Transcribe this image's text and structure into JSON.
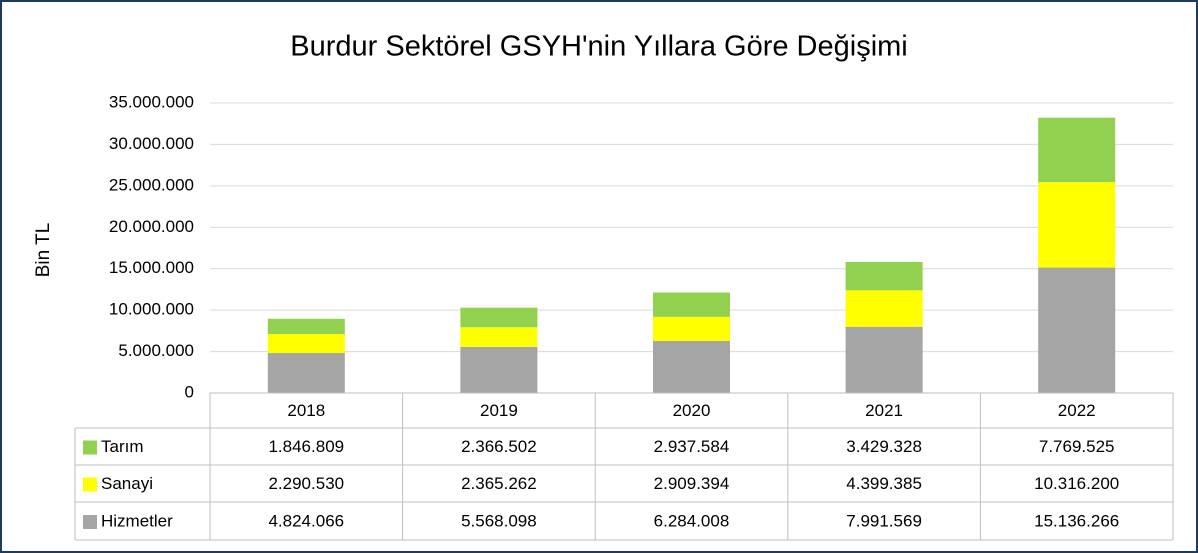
{
  "chart_data": {
    "type": "stacked_bar",
    "title": "Burdur Sektörel GSYH'nin Yıllara Göre Değişimi",
    "y_label": "Bin TL",
    "categories": [
      "2018",
      "2019",
      "2020",
      "2021",
      "2022"
    ],
    "series": [
      {
        "name": "Tarım",
        "color": "#92d050",
        "values": [
          1846809,
          2366502,
          2937584,
          3429328,
          7769525
        ],
        "value_labels": [
          "1.846.809",
          "2.366.502",
          "2.937.584",
          "3.429.328",
          "7.769.525"
        ]
      },
      {
        "name": "Sanayi",
        "color": "#ffff00",
        "values": [
          2290530,
          2365262,
          2909394,
          4399385,
          10316200
        ],
        "value_labels": [
          "2.290.530",
          "2.365.262",
          "2.909.394",
          "4.399.385",
          "10.316.200"
        ]
      },
      {
        "name": "Hizmetler",
        "color": "#a5a5a5",
        "values": [
          4824066,
          5568098,
          6284008,
          7991569,
          15136266
        ],
        "value_labels": [
          "4.824.066",
          "5.568.098",
          "6.284.008",
          "7.991.569",
          "15.136.266"
        ]
      }
    ],
    "ylim": [
      0,
      35000000
    ],
    "yticks": [
      0,
      {
        "value": 5000000,
        "label": "5.000.000"
      },
      {
        "value": 10000000,
        "label": "10.000.000"
      },
      {
        "value": 15000000,
        "label": "15.000.000"
      },
      {
        "value": 20000000,
        "label": "20.000.000"
      },
      {
        "value": 25000000,
        "label": "25.000.000"
      },
      {
        "value": 30000000,
        "label": "30.000.000"
      },
      {
        "value": 35000000,
        "label": "35.000.000"
      }
    ],
    "grid": true
  }
}
